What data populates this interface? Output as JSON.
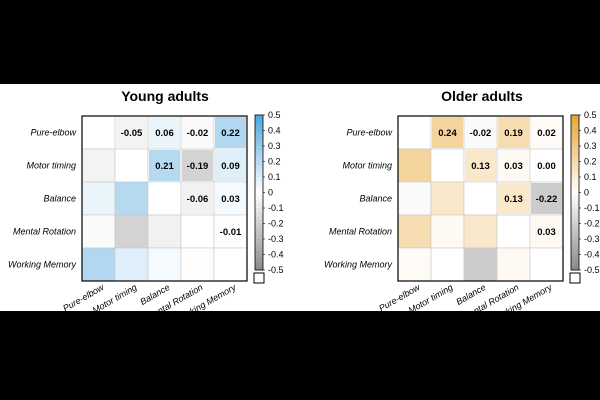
{
  "chart_data": [
    {
      "type": "heatmap",
      "title": "Young adults",
      "variables": [
        "Pure-elbow",
        "Motor timing",
        "Balance",
        "Mental Rotation",
        "Working Memory"
      ],
      "upper_labels": [
        [
          "",
          "-0.05",
          "0.06",
          "-0.02",
          "0.22"
        ],
        [
          "",
          "",
          "0.21",
          "-0.19",
          "0.09"
        ],
        [
          "",
          "",
          "",
          "-0.06",
          "0.03"
        ],
        [
          "",
          "",
          "",
          "",
          "-0.01"
        ],
        [
          "",
          "",
          "",
          "",
          ""
        ]
      ],
      "matrix": [
        [
          null,
          -0.05,
          0.06,
          -0.02,
          0.22
        ],
        [
          -0.05,
          null,
          0.21,
          -0.19,
          0.09
        ],
        [
          0.06,
          0.21,
          null,
          -0.06,
          0.03
        ],
        [
          -0.02,
          -0.19,
          -0.06,
          null,
          -0.01
        ],
        [
          0.22,
          0.09,
          0.03,
          -0.01,
          null
        ]
      ],
      "colorbar": {
        "range": [
          -0.5,
          0.5
        ],
        "ticks": [
          "0.5",
          "0.4",
          "0.3",
          "0.2",
          "0.1",
          "0",
          "-0.1",
          "-0.2",
          "-0.3",
          "-0.4",
          "-0.5"
        ],
        "positive_color": "#4ea6dc",
        "negative_color": "#8a8a8a"
      }
    },
    {
      "type": "heatmap",
      "title": "Older adults",
      "variables": [
        "Pure-elbow",
        "Motor timing",
        "Balance",
        "Mental Rotation",
        "Working Memory"
      ],
      "upper_labels": [
        [
          "",
          "0.24",
          "-0.02",
          "0.19",
          "0.02"
        ],
        [
          "",
          "",
          "0.13",
          "0.03",
          "0.00"
        ],
        [
          "",
          "",
          "",
          "0.13",
          "-0.22"
        ],
        [
          "",
          "",
          "",
          "",
          "0.03"
        ],
        [
          "",
          "",
          "",
          "",
          ""
        ]
      ],
      "matrix": [
        [
          null,
          0.24,
          -0.02,
          0.19,
          0.02
        ],
        [
          0.24,
          null,
          0.13,
          0.03,
          0.0
        ],
        [
          -0.02,
          0.13,
          null,
          0.13,
          -0.22
        ],
        [
          0.19,
          0.03,
          0.13,
          null,
          0.03
        ],
        [
          0.02,
          0.0,
          -0.22,
          0.03,
          null
        ]
      ],
      "colorbar": {
        "range": [
          -0.5,
          0.5
        ],
        "ticks": [
          "0.5",
          "0.4",
          "0.3",
          "0.2",
          "0.1",
          "0",
          "-0.1",
          "-0.2",
          "-0.3",
          "-0.4",
          "-0.5"
        ],
        "positive_color": "#e6a532",
        "negative_color": "#8a8a8a"
      }
    }
  ]
}
